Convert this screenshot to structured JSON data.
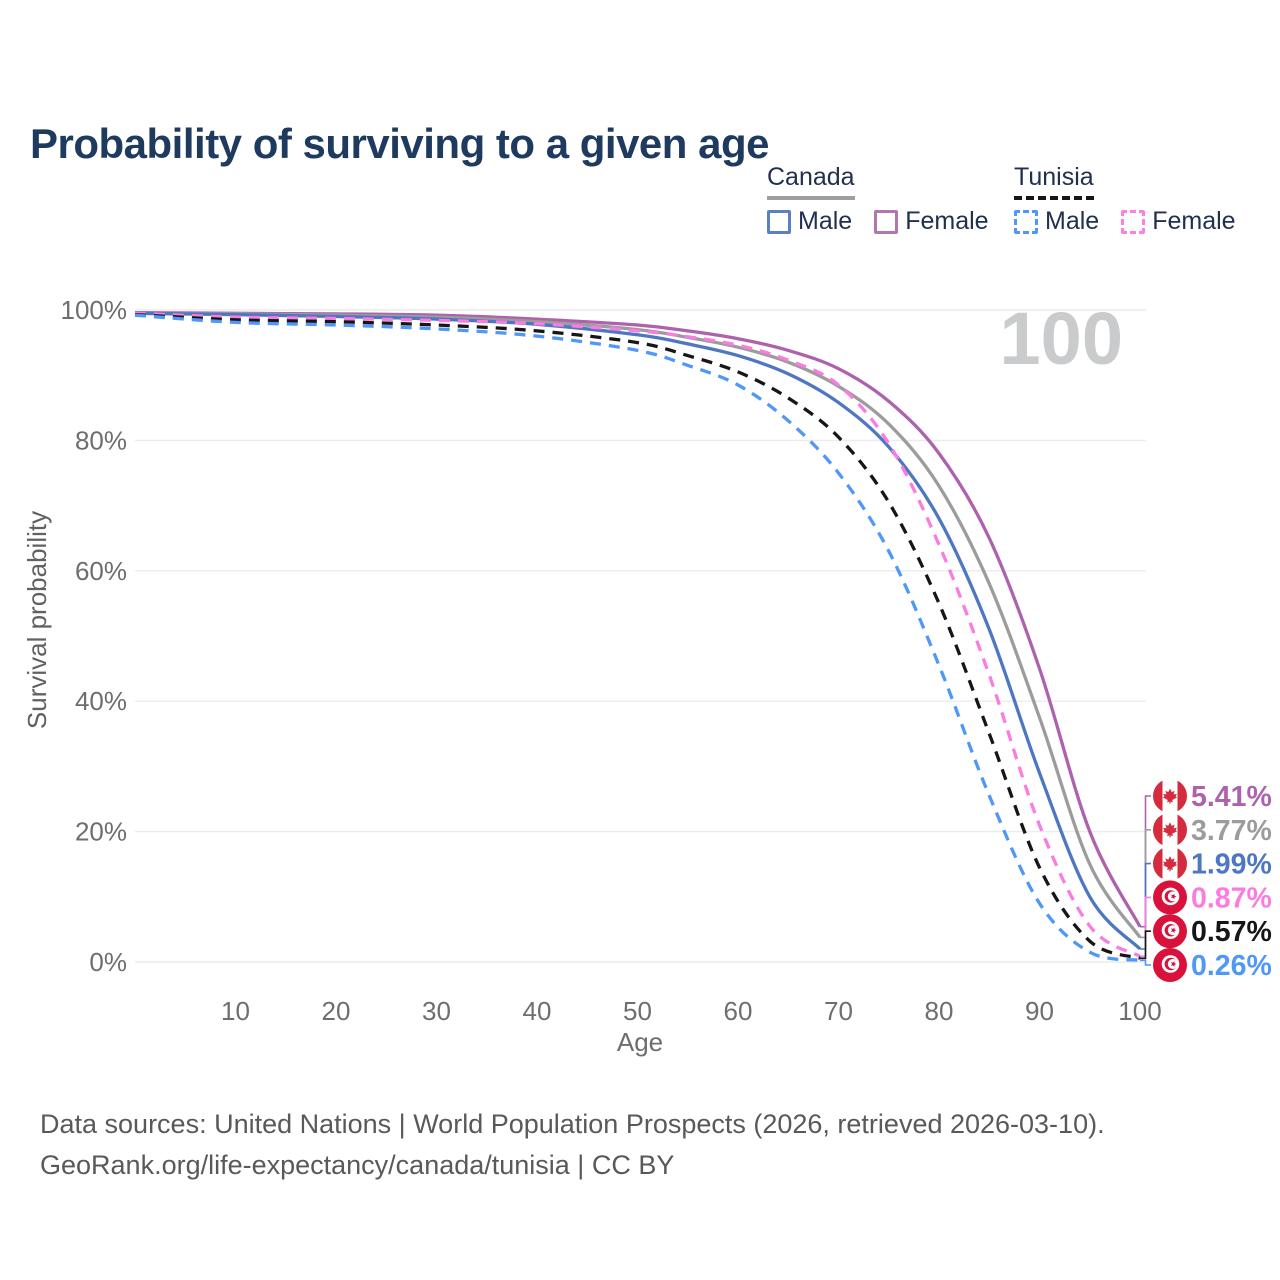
{
  "header": {
    "title": "Probability of surviving to a given age"
  },
  "legend": {
    "groups": [
      {
        "country": "Canada",
        "line_style": "solid",
        "underline_color": "#9e9e9e",
        "items": [
          {
            "label": "Male",
            "color": "#5b80c2"
          },
          {
            "label": "Female",
            "color": "#b276ae"
          }
        ]
      },
      {
        "country": "Tunisia",
        "line_style": "dashed",
        "underline_color": "#161616",
        "items": [
          {
            "label": "Male",
            "color": "#4f97f8"
          },
          {
            "label": "Female",
            "color": "#ff7ee0"
          }
        ]
      }
    ]
  },
  "chart_data": {
    "type": "line",
    "title": "Probability of surviving to a given age",
    "xlabel": "Age",
    "ylabel": "Survival probability",
    "xlim": [
      0,
      100
    ],
    "ylim": [
      0,
      100
    ],
    "grid": "horizontal-only",
    "legend_position": "top-right",
    "watermark": "100",
    "x_ticks": [
      10,
      20,
      30,
      40,
      50,
      60,
      70,
      80,
      90,
      100
    ],
    "y_tick_values": [
      100,
      80,
      60,
      40,
      20,
      0
    ],
    "y_tick_labels": [
      "100%",
      "80%",
      "60%",
      "40%",
      "20%",
      "0%"
    ],
    "ages": [
      0,
      10,
      20,
      30,
      40,
      50,
      55,
      60,
      65,
      70,
      75,
      80,
      85,
      90,
      95,
      100
    ],
    "series": [
      {
        "id": "canada-female",
        "name": "Canada Female",
        "country": "Canada",
        "sex": "Female",
        "style": "solid",
        "flag": "canada",
        "color": "#ae62ae",
        "end_label": "5.41%",
        "end_value": 5.41,
        "values": [
          99.6,
          99.5,
          99.4,
          99.2,
          98.6,
          97.7,
          96.8,
          95.6,
          93.8,
          91.0,
          86.0,
          78.0,
          65.0,
          45.0,
          20.0,
          5.41
        ]
      },
      {
        "id": "canada-both",
        "name": "Canada Both sexes",
        "country": "Canada",
        "sex": "Both",
        "style": "solid",
        "flag": "canada",
        "color": "#9c9c9c",
        "end_label": "3.77%",
        "end_value": 3.77,
        "values": [
          99.5,
          99.4,
          99.2,
          98.9,
          98.2,
          97.0,
          95.8,
          94.3,
          92.0,
          88.3,
          82.5,
          73.0,
          58.0,
          37.5,
          15.0,
          3.77
        ]
      },
      {
        "id": "canada-male",
        "name": "Canada Male",
        "country": "Canada",
        "sex": "Male",
        "style": "solid",
        "flag": "canada",
        "color": "#4d77c2",
        "end_label": "1.99%",
        "end_value": 1.99,
        "values": [
          99.5,
          99.3,
          99.0,
          98.6,
          97.8,
          96.2,
          94.8,
          93.0,
          90.2,
          85.8,
          79.0,
          68.0,
          51.0,
          29.0,
          10.0,
          1.99
        ]
      },
      {
        "id": "tunisia-female",
        "name": "Tunisia Female",
        "country": "Tunisia",
        "sex": "Female",
        "style": "dashed",
        "flag": "tunisia",
        "color": "#fb7ce0",
        "end_label": "0.87%",
        "end_value": 0.87,
        "values": [
          99.5,
          98.9,
          98.7,
          98.4,
          97.9,
          96.8,
          95.9,
          94.6,
          92.3,
          88.5,
          79.5,
          64.0,
          44.0,
          21.0,
          5.5,
          0.87
        ]
      },
      {
        "id": "tunisia-both",
        "name": "Tunisia Both sexes",
        "country": "Tunisia",
        "sex": "Both",
        "style": "dashed",
        "flag": "tunisia",
        "color": "#161616",
        "end_label": "0.57%",
        "end_value": 0.57,
        "values": [
          99.3,
          98.5,
          98.2,
          97.7,
          96.8,
          95.0,
          93.0,
          90.5,
          86.5,
          80.5,
          70.5,
          55.0,
          35.0,
          14.5,
          3.2,
          0.57
        ]
      },
      {
        "id": "tunisia-male",
        "name": "Tunisia Male",
        "country": "Tunisia",
        "sex": "Male",
        "style": "dashed",
        "flag": "tunisia",
        "color": "#4f97f8",
        "end_label": "0.26%",
        "end_value": 0.26,
        "values": [
          99.2,
          98.1,
          97.7,
          97.1,
          96.0,
          93.8,
          91.5,
          88.5,
          83.0,
          75.0,
          63.0,
          45.5,
          25.5,
          9.0,
          1.5,
          0.26
        ]
      }
    ],
    "flag_colors": {
      "canada_red": "#d52b3e",
      "tunisia_red": "#d8123a"
    }
  },
  "footer": {
    "line1": "Data sources: United Nations | World Population Prospects (2026, retrieved 2026-03-10).",
    "line2": "GeoRank.org/life-expectancy/canada/tunisia | CC BY"
  }
}
